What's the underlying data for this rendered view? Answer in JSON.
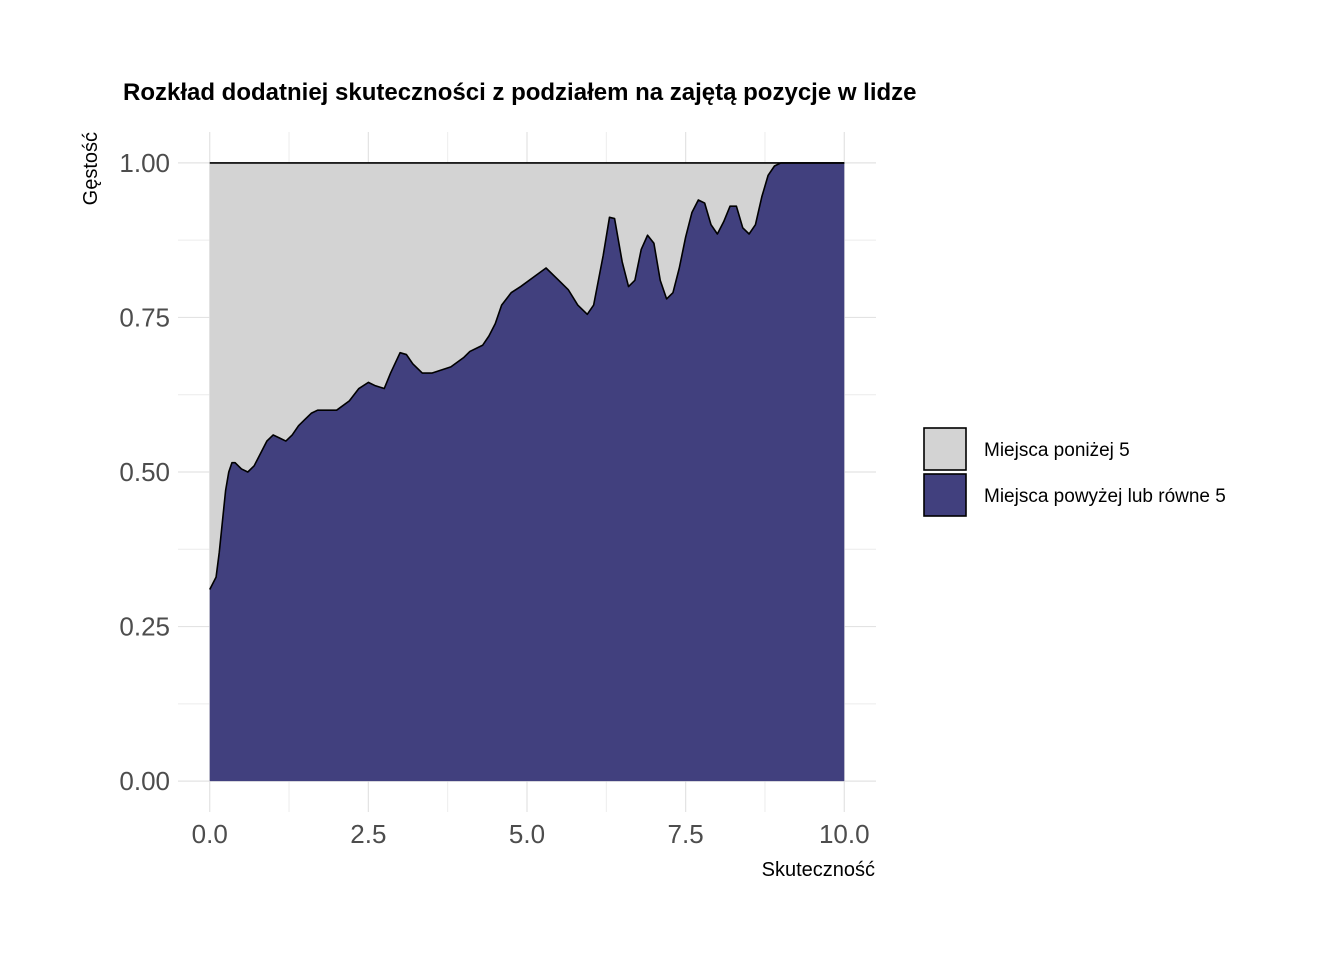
{
  "chart_data": {
    "type": "area",
    "subtype": "conditional-density-stacked",
    "title": "Rozkład dodatniej skuteczności z podziałem na zajętą pozycje w lidze",
    "xlabel": "Skuteczność",
    "ylabel": "Gęstość",
    "xlim": [
      -0.5,
      10.5
    ],
    "ylim": [
      -0.05,
      1.05
    ],
    "x_ticks": [
      "0.0",
      "2.5",
      "5.0",
      "7.5",
      "10.0"
    ],
    "y_ticks": [
      "0.00",
      "0.25",
      "0.50",
      "0.75",
      "1.00"
    ],
    "grid": true,
    "legend_position": "right",
    "colors": {
      "upper": "#d3d3d3",
      "lower": "#41407e",
      "outline": "#000000"
    },
    "series": [
      {
        "name": "Miejsca poniżej 5",
        "color": "#d3d3d3"
      },
      {
        "name": "Miejsca powyżej lub równe 5",
        "color": "#41407e"
      }
    ],
    "boundary": {
      "x": [
        0.0,
        0.1,
        0.15,
        0.2,
        0.25,
        0.3,
        0.35,
        0.4,
        0.5,
        0.6,
        0.7,
        0.8,
        0.9,
        1.0,
        1.1,
        1.2,
        1.3,
        1.4,
        1.5,
        1.6,
        1.7,
        1.8,
        1.9,
        2.0,
        2.2,
        2.35,
        2.5,
        2.6,
        2.75,
        2.85,
        3.0,
        3.1,
        3.2,
        3.35,
        3.5,
        3.8,
        4.0,
        4.1,
        4.3,
        4.4,
        4.5,
        4.6,
        4.75,
        4.9,
        5.1,
        5.3,
        5.5,
        5.65,
        5.8,
        5.95,
        6.05,
        6.2,
        6.3,
        6.38,
        6.5,
        6.6,
        6.7,
        6.8,
        6.9,
        7.0,
        7.1,
        7.2,
        7.3,
        7.4,
        7.5,
        7.6,
        7.7,
        7.8,
        7.9,
        8.0,
        8.1,
        8.2,
        8.3,
        8.4,
        8.5,
        8.6,
        8.7,
        8.8,
        8.9,
        9.0,
        9.1,
        9.2,
        10.0
      ],
      "y": [
        0.31,
        0.33,
        0.37,
        0.42,
        0.47,
        0.5,
        0.515,
        0.515,
        0.505,
        0.5,
        0.51,
        0.53,
        0.55,
        0.56,
        0.555,
        0.55,
        0.56,
        0.575,
        0.585,
        0.595,
        0.6,
        0.6,
        0.6,
        0.6,
        0.615,
        0.635,
        0.645,
        0.64,
        0.635,
        0.66,
        0.693,
        0.69,
        0.675,
        0.66,
        0.66,
        0.67,
        0.685,
        0.695,
        0.705,
        0.72,
        0.74,
        0.77,
        0.79,
        0.8,
        0.815,
        0.83,
        0.81,
        0.795,
        0.77,
        0.755,
        0.77,
        0.85,
        0.912,
        0.91,
        0.84,
        0.8,
        0.81,
        0.86,
        0.883,
        0.87,
        0.81,
        0.78,
        0.79,
        0.83,
        0.88,
        0.92,
        0.94,
        0.935,
        0.9,
        0.885,
        0.905,
        0.93,
        0.93,
        0.895,
        0.885,
        0.9,
        0.945,
        0.98,
        0.995,
        1.0,
        1.0,
        1.0,
        1.0
      ]
    }
  }
}
